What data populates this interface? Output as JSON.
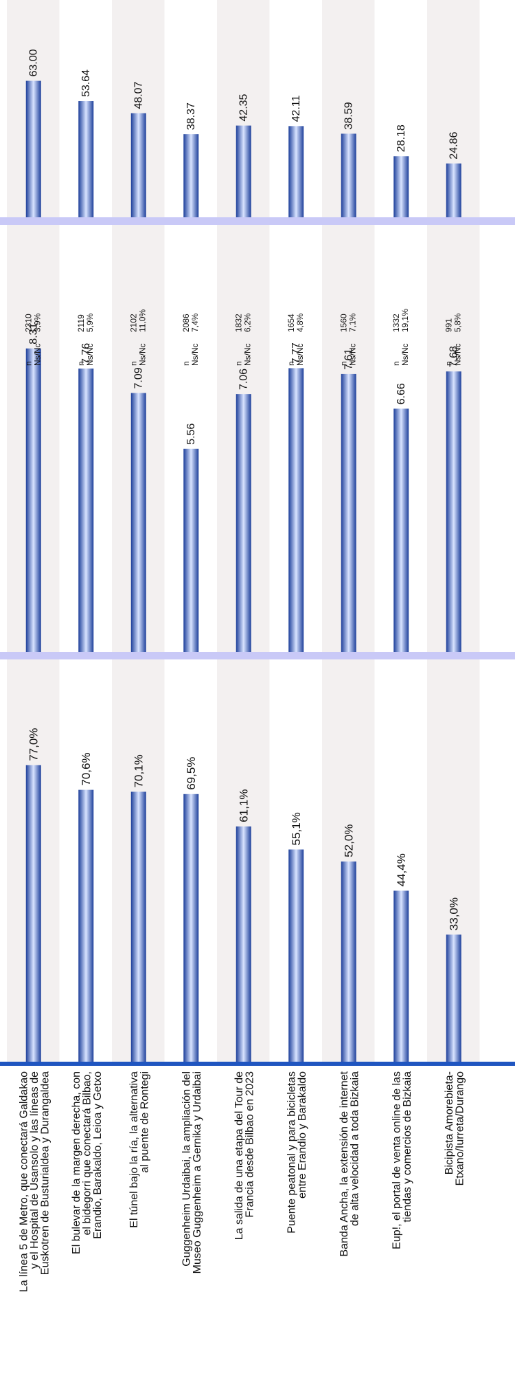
{
  "chart_data": {
    "type": "bar",
    "orientation": "rotated",
    "categories": [
      [
        "La línea 5 de Metro, que conectará Galdakao",
        "y el Hospital de Usansolo y las líneas de",
        "Euskotren de Busturialdea y Durangaldea"
      ],
      [
        "El bulevar de la margen derecha, con",
        "el bidegorri que conectará Bilbao,",
        "Erandio, Barakaldo, Leioa y Getxo"
      ],
      [
        "El túnel bajo la ría, la alternativa",
        "al puente de Rontegi"
      ],
      [
        "Guggenheim Urdaibai, la ampliación del",
        "Museo Guggenheim a Gernika y Urdaibai"
      ],
      [
        "La salida de una etapa del Tour de",
        "Francia desde Bilbao en 2023"
      ],
      [
        "Puente peatonal y para bicicletas",
        "entre Erandio y Barakaldo"
      ],
      [
        "Banda Ancha, la extensión de internet",
        "de alta velocidad a toda Bizkaia"
      ],
      [
        "Eup!, el portal de venta online de las",
        "tiendas y comercios de Bizkaia"
      ],
      [
        "Bicipista Amorebieta-",
        "Etxano/Iurreta/Durango"
      ]
    ],
    "panels": [
      {
        "values": [
          77.0,
          70.6,
          70.1,
          69.5,
          61.1,
          55.1,
          52.0,
          44.4,
          33.0
        ],
        "labels": [
          "77,0%",
          "70,6%",
          "70,1%",
          "69,5%",
          "61,1%",
          "55,1%",
          "52,0%",
          "44,4%",
          "33,0%"
        ],
        "scale_max": 100
      },
      {
        "values": [
          8.31,
          7.76,
          7.09,
          5.56,
          7.06,
          7.77,
          7.61,
          6.66,
          7.68
        ],
        "labels": [
          "8.31",
          "7.76",
          "7.09",
          "5.56",
          "7.06",
          "7.77",
          "7.61",
          "6.66",
          "7.68"
        ],
        "scale_max": 10,
        "meta_key_n": "n",
        "meta_key_nsnc": "Ns/Nc",
        "n": [
          "2310",
          "2119",
          "2102",
          "2086",
          "1832",
          "1654",
          "1560",
          "1332",
          "991"
        ],
        "nsnc": [
          "3,9%",
          "5,9%",
          "11,0%",
          "7,4%",
          "6,2%",
          "4,8%",
          "7,1%",
          "19,1%",
          "5,8%"
        ]
      },
      {
        "values": [
          63.0,
          53.64,
          48.07,
          38.37,
          42.35,
          42.11,
          38.59,
          28.18,
          24.86
        ],
        "labels": [
          "63.00",
          "53.64",
          "48.07",
          "38.37",
          "42.35",
          "42.11",
          "38.59",
          "28.18",
          "24.86"
        ],
        "scale_max": 100
      }
    ],
    "grid": false,
    "legend": "none",
    "colors": {
      "bar_edge": "#1d3f9a",
      "bar_center": "#d8e3ff",
      "band_light": "#f3f0f0",
      "band_white": "#ffffff",
      "axis_line": "#1f55c0",
      "separator": "#c9c9f7"
    }
  }
}
